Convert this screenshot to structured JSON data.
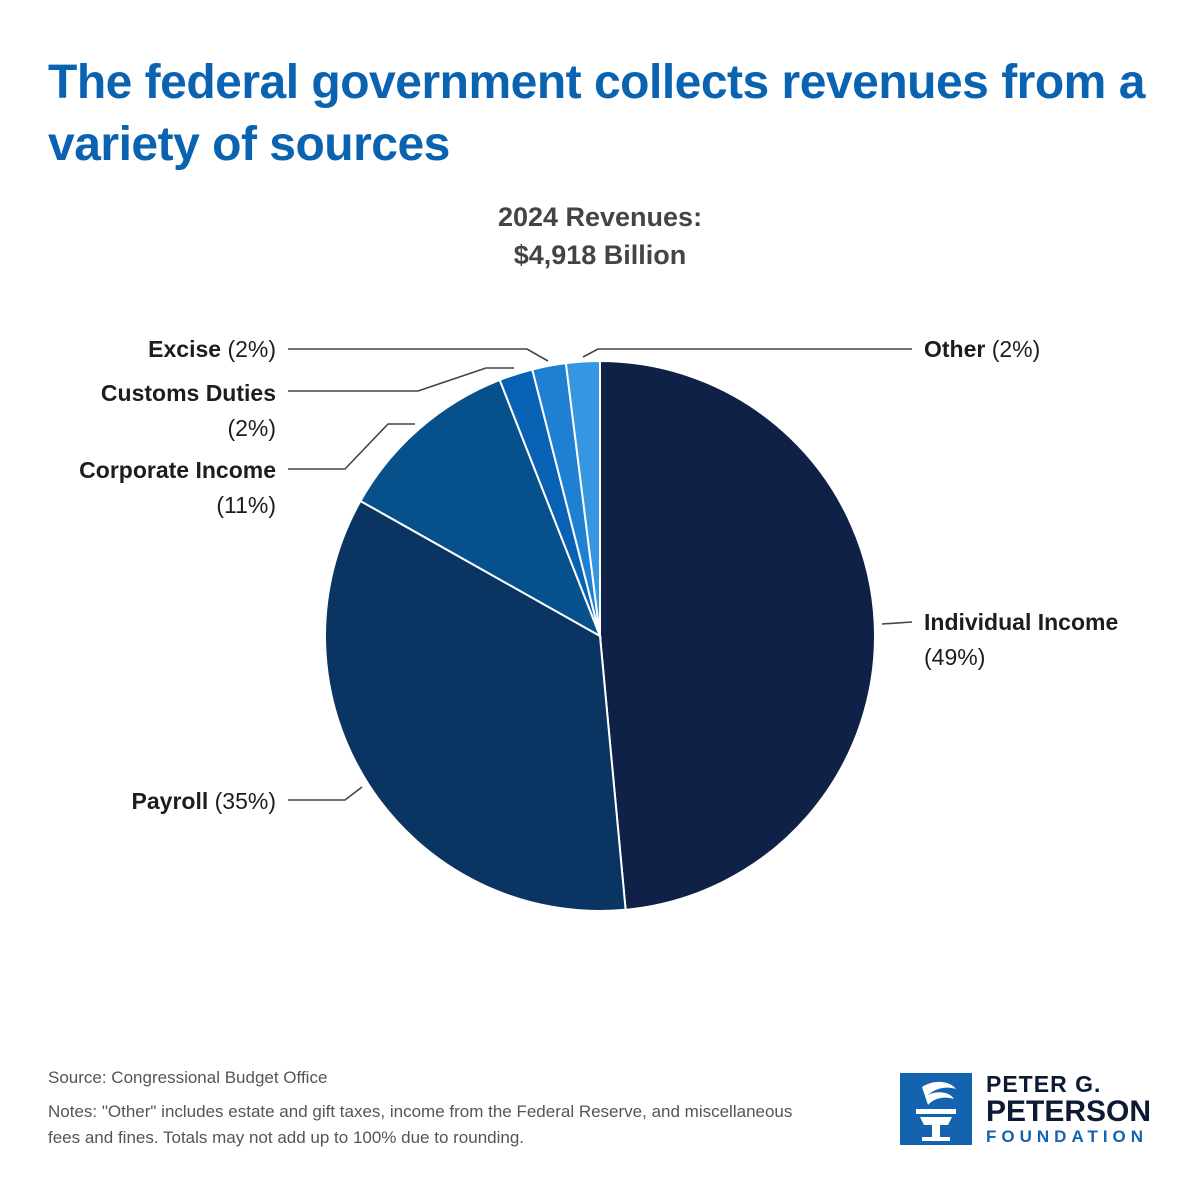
{
  "header": {
    "title": "The federal government collects revenues from a variety of sources"
  },
  "chart_data": {
    "type": "pie",
    "title_line1": "2024 Revenues:",
    "title_line2": "$4,918 Billion",
    "slices": [
      {
        "name": "Individual Income",
        "pct_label": "(49%)",
        "value": 49,
        "color": "#0f2147"
      },
      {
        "name": "Payroll",
        "pct_label": "(35%)",
        "value": 35,
        "color": "#0a3563"
      },
      {
        "name": "Corporate Income",
        "pct_label": "(11%)",
        "value": 11,
        "color": "#06518c"
      },
      {
        "name": "Customs Duties",
        "pct_label": "(2%)",
        "value": 2,
        "color": "#0762b4"
      },
      {
        "name": "Excise",
        "pct_label": "(2%)",
        "value": 2,
        "color": "#1f80d2"
      },
      {
        "name": "Other",
        "pct_label": "(2%)",
        "value": 2,
        "color": "#3596e2"
      }
    ]
  },
  "footer": {
    "source": "Source: Congressional Budget Office",
    "notes": "Notes: \"Other\" includes estate and gift taxes, income from the Federal Reserve, and miscellaneous fees and fines. Totals may not add up to 100% due to rounding."
  },
  "logo": {
    "line1": "PETER G.",
    "line2": "PETERSON",
    "line3": "FOUNDATION"
  }
}
